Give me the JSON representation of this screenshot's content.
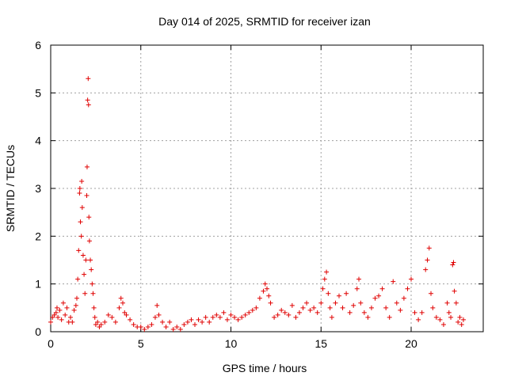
{
  "chart_data": {
    "type": "scatter",
    "title": "Day 014 of 2025, SRMTID for receiver izan",
    "xlabel": "GPS time / hours",
    "ylabel": "SRMTID / TECUs",
    "xlim": [
      0,
      24
    ],
    "ylim": [
      0,
      6
    ],
    "xticks": [
      0,
      5,
      10,
      15,
      20
    ],
    "yticks": [
      0,
      1,
      2,
      3,
      4,
      5,
      6
    ],
    "xtick_labels": [
      "0",
      "5",
      "10",
      "15",
      "20"
    ],
    "ytick_labels": [
      "0",
      "1",
      "2",
      "3",
      "4",
      "5",
      "6"
    ],
    "grid": true,
    "marker": "+",
    "color": "#e00000",
    "series": [
      {
        "name": "izan",
        "points": [
          [
            0.0,
            0.2
          ],
          [
            0.1,
            0.3
          ],
          [
            0.2,
            0.35
          ],
          [
            0.3,
            0.4
          ],
          [
            0.35,
            0.5
          ],
          [
            0.4,
            0.3
          ],
          [
            0.5,
            0.45
          ],
          [
            0.6,
            0.25
          ],
          [
            0.7,
            0.6
          ],
          [
            0.8,
            0.35
          ],
          [
            0.9,
            0.5
          ],
          [
            1.0,
            0.2
          ],
          [
            1.1,
            0.3
          ],
          [
            1.2,
            0.2
          ],
          [
            1.3,
            0.45
          ],
          [
            1.4,
            0.55
          ],
          [
            1.45,
            0.7
          ],
          [
            1.5,
            1.1
          ],
          [
            1.55,
            1.7
          ],
          [
            1.6,
            2.9
          ],
          [
            1.62,
            3.0
          ],
          [
            1.65,
            2.3
          ],
          [
            1.7,
            2.0
          ],
          [
            1.72,
            3.15
          ],
          [
            1.75,
            2.6
          ],
          [
            1.8,
            1.6
          ],
          [
            1.85,
            1.2
          ],
          [
            1.9,
            0.8
          ],
          [
            1.95,
            1.5
          ],
          [
            2.0,
            2.85
          ],
          [
            2.02,
            3.45
          ],
          [
            2.05,
            4.85
          ],
          [
            2.08,
            5.3
          ],
          [
            2.1,
            4.75
          ],
          [
            2.12,
            2.4
          ],
          [
            2.15,
            1.9
          ],
          [
            2.2,
            1.5
          ],
          [
            2.25,
            1.3
          ],
          [
            2.3,
            1.0
          ],
          [
            2.35,
            0.8
          ],
          [
            2.4,
            0.5
          ],
          [
            2.45,
            0.3
          ],
          [
            2.5,
            0.15
          ],
          [
            2.6,
            0.2
          ],
          [
            2.7,
            0.1
          ],
          [
            2.8,
            0.15
          ],
          [
            3.0,
            0.2
          ],
          [
            3.2,
            0.35
          ],
          [
            3.4,
            0.3
          ],
          [
            3.6,
            0.2
          ],
          [
            3.8,
            0.5
          ],
          [
            3.9,
            0.7
          ],
          [
            4.0,
            0.6
          ],
          [
            4.1,
            0.4
          ],
          [
            4.2,
            0.35
          ],
          [
            4.4,
            0.25
          ],
          [
            4.6,
            0.15
          ],
          [
            4.8,
            0.1
          ],
          [
            5.0,
            0.1
          ],
          [
            5.2,
            0.05
          ],
          [
            5.4,
            0.1
          ],
          [
            5.6,
            0.15
          ],
          [
            5.8,
            0.3
          ],
          [
            5.9,
            0.55
          ],
          [
            6.0,
            0.35
          ],
          [
            6.2,
            0.2
          ],
          [
            6.4,
            0.1
          ],
          [
            6.6,
            0.2
          ],
          [
            6.8,
            0.05
          ],
          [
            7.0,
            0.1
          ],
          [
            7.2,
            0.05
          ],
          [
            7.4,
            0.15
          ],
          [
            7.6,
            0.2
          ],
          [
            7.8,
            0.25
          ],
          [
            8.0,
            0.15
          ],
          [
            8.2,
            0.25
          ],
          [
            8.4,
            0.2
          ],
          [
            8.6,
            0.3
          ],
          [
            8.8,
            0.2
          ],
          [
            9.0,
            0.3
          ],
          [
            9.2,
            0.35
          ],
          [
            9.4,
            0.3
          ],
          [
            9.6,
            0.4
          ],
          [
            9.8,
            0.25
          ],
          [
            10.0,
            0.35
          ],
          [
            10.2,
            0.3
          ],
          [
            10.4,
            0.25
          ],
          [
            10.6,
            0.3
          ],
          [
            10.8,
            0.35
          ],
          [
            11.0,
            0.4
          ],
          [
            11.2,
            0.45
          ],
          [
            11.4,
            0.5
          ],
          [
            11.6,
            0.7
          ],
          [
            11.8,
            0.85
          ],
          [
            11.9,
            1.0
          ],
          [
            12.0,
            0.9
          ],
          [
            12.1,
            0.75
          ],
          [
            12.2,
            0.6
          ],
          [
            12.4,
            0.3
          ],
          [
            12.6,
            0.35
          ],
          [
            12.8,
            0.45
          ],
          [
            13.0,
            0.4
          ],
          [
            13.2,
            0.35
          ],
          [
            13.4,
            0.55
          ],
          [
            13.6,
            0.3
          ],
          [
            13.8,
            0.4
          ],
          [
            14.0,
            0.5
          ],
          [
            14.2,
            0.6
          ],
          [
            14.4,
            0.45
          ],
          [
            14.6,
            0.5
          ],
          [
            14.8,
            0.4
          ],
          [
            15.0,
            0.6
          ],
          [
            15.1,
            0.9
          ],
          [
            15.2,
            1.1
          ],
          [
            15.3,
            1.25
          ],
          [
            15.4,
            0.8
          ],
          [
            15.5,
            0.5
          ],
          [
            15.6,
            0.3
          ],
          [
            15.8,
            0.6
          ],
          [
            16.0,
            0.75
          ],
          [
            16.2,
            0.5
          ],
          [
            16.4,
            0.8
          ],
          [
            16.6,
            0.4
          ],
          [
            16.8,
            0.55
          ],
          [
            17.0,
            0.9
          ],
          [
            17.1,
            1.1
          ],
          [
            17.2,
            0.6
          ],
          [
            17.4,
            0.4
          ],
          [
            17.6,
            0.3
          ],
          [
            17.8,
            0.5
          ],
          [
            18.0,
            0.7
          ],
          [
            18.2,
            0.75
          ],
          [
            18.4,
            0.9
          ],
          [
            18.6,
            0.5
          ],
          [
            18.8,
            0.3
          ],
          [
            19.0,
            1.05
          ],
          [
            19.2,
            0.6
          ],
          [
            19.4,
            0.45
          ],
          [
            19.6,
            0.7
          ],
          [
            19.8,
            0.9
          ],
          [
            20.0,
            1.1
          ],
          [
            20.2,
            0.4
          ],
          [
            20.4,
            0.25
          ],
          [
            20.6,
            0.4
          ],
          [
            20.8,
            1.3
          ],
          [
            20.9,
            1.5
          ],
          [
            21.0,
            1.75
          ],
          [
            21.1,
            0.8
          ],
          [
            21.2,
            0.5
          ],
          [
            21.4,
            0.3
          ],
          [
            21.6,
            0.25
          ],
          [
            21.8,
            0.15
          ],
          [
            22.0,
            0.6
          ],
          [
            22.1,
            0.4
          ],
          [
            22.2,
            0.3
          ],
          [
            22.3,
            1.4
          ],
          [
            22.35,
            1.45
          ],
          [
            22.4,
            0.85
          ],
          [
            22.5,
            0.6
          ],
          [
            22.6,
            0.2
          ],
          [
            22.7,
            0.3
          ],
          [
            22.8,
            0.15
          ],
          [
            22.9,
            0.25
          ]
        ]
      }
    ]
  }
}
